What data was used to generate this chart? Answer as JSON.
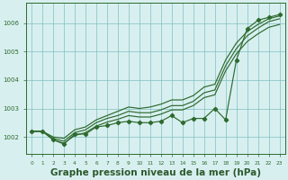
{
  "title": "Graphe pression niveau de la mer (hPa)",
  "hours": [
    0,
    1,
    2,
    3,
    4,
    5,
    6,
    7,
    8,
    9,
    10,
    11,
    12,
    13,
    14,
    15,
    16,
    17,
    18,
    19,
    20,
    21,
    22,
    23
  ],
  "line_zigzag": [
    1002.2,
    1002.2,
    1001.9,
    1001.75,
    1002.1,
    1002.1,
    1002.35,
    1002.4,
    1002.5,
    1002.55,
    1002.5,
    1002.5,
    1002.55,
    1002.75,
    1002.5,
    1002.65,
    1002.65,
    1003.0,
    1002.6,
    1004.7,
    1005.8,
    1006.1,
    1006.2,
    1006.3
  ],
  "trend_upper": [
    1002.2,
    1002.2,
    1002.0,
    1001.95,
    1002.25,
    1002.35,
    1002.6,
    1002.75,
    1002.9,
    1003.05,
    1003.0,
    1003.05,
    1003.15,
    1003.3,
    1003.3,
    1003.45,
    1003.75,
    1003.85,
    1004.7,
    1005.3,
    1005.7,
    1005.95,
    1006.15,
    1006.25
  ],
  "trend_mid": [
    1002.2,
    1002.2,
    1001.95,
    1001.85,
    1002.15,
    1002.25,
    1002.5,
    1002.65,
    1002.75,
    1002.9,
    1002.85,
    1002.85,
    1002.95,
    1003.1,
    1003.1,
    1003.25,
    1003.55,
    1003.65,
    1004.5,
    1005.1,
    1005.55,
    1005.82,
    1006.05,
    1006.15
  ],
  "trend_lower": [
    1002.2,
    1002.2,
    1001.9,
    1001.78,
    1002.05,
    1002.15,
    1002.38,
    1002.52,
    1002.62,
    1002.75,
    1002.7,
    1002.7,
    1002.8,
    1002.95,
    1002.95,
    1003.1,
    1003.38,
    1003.48,
    1004.32,
    1004.92,
    1005.35,
    1005.62,
    1005.85,
    1005.95
  ],
  "bg_color": "#d8eff0",
  "line_color": "#2d6a2d",
  "grid_color": "#7fbfbf",
  "ylim": [
    1001.4,
    1006.7
  ],
  "yticks": [
    1002,
    1003,
    1004,
    1005,
    1006
  ],
  "title_color": "#2d5a2d",
  "title_fontsize": 7.5
}
